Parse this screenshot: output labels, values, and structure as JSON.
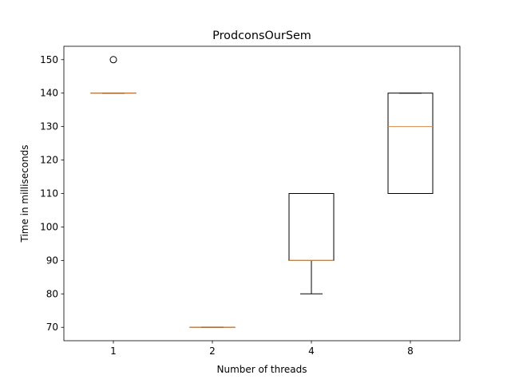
{
  "chart_data": {
    "type": "box",
    "title": "ProdconsOurSem",
    "xlabel": "Number of threads",
    "ylabel": "Time in milliseconds",
    "ylim": [
      66,
      154
    ],
    "yticks": [
      70,
      80,
      90,
      100,
      110,
      120,
      130,
      140,
      150
    ],
    "grid": false,
    "categories": [
      "1",
      "2",
      "4",
      "8"
    ],
    "boxes": [
      {
        "category": "1",
        "whislo": 140,
        "q1": 140,
        "med": 140,
        "q3": 140,
        "whishi": 140,
        "fliers": [
          150
        ]
      },
      {
        "category": "2",
        "whislo": 70,
        "q1": 70,
        "med": 70,
        "q3": 70,
        "whishi": 70,
        "fliers": []
      },
      {
        "category": "4",
        "whislo": 80,
        "q1": 90,
        "med": 90,
        "q3": 110,
        "whishi": 110,
        "fliers": []
      },
      {
        "category": "8",
        "whislo": 110,
        "q1": 110,
        "med": 130,
        "q3": 140,
        "whishi": 140,
        "fliers": []
      }
    ],
    "colors": {
      "box": "#000000",
      "median": "#ff7f0e",
      "flier": "#000000"
    }
  }
}
